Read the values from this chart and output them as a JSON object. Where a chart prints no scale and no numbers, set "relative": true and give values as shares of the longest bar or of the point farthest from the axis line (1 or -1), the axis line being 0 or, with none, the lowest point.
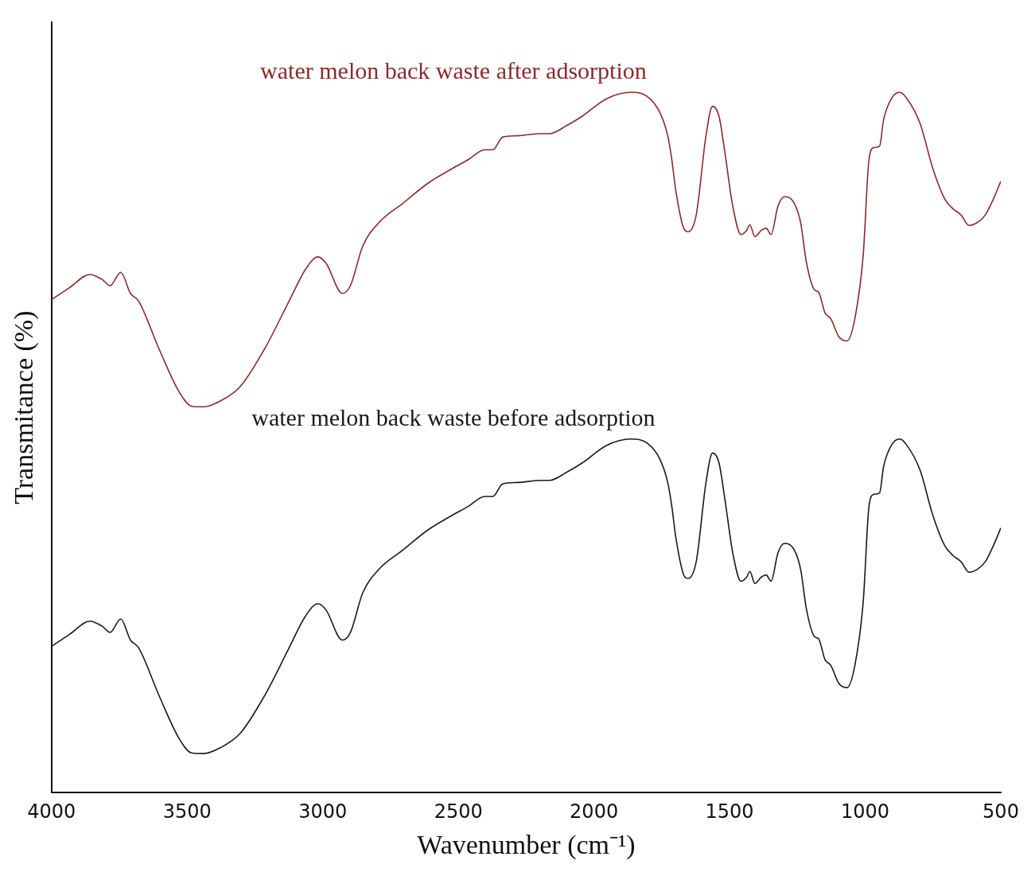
{
  "chart_data": {
    "type": "line",
    "xlabel": "Wavenumber (cm⁻¹)",
    "ylabel": "Transmitance (%)",
    "relative": true,
    "xlim": [
      4000,
      500
    ],
    "xticks": [
      4000,
      3500,
      3000,
      2500,
      2000,
      1500,
      1000,
      500
    ],
    "grid": false,
    "legend": false,
    "marker": "none",
    "line_style": "solid",
    "x": [
      4000,
      3934,
      3859,
      3814,
      3784,
      3745,
      3709,
      3679,
      3604,
      3529,
      3484,
      3439,
      3379,
      3304,
      3214,
      3124,
      3064,
      3018,
      2988,
      2928,
      2898,
      2853,
      2793,
      2703,
      2613,
      2523,
      2463,
      2403,
      2373,
      2337,
      2283,
      2193,
      2163,
      2103,
      2043,
      1953,
      1863,
      1803,
      1758,
      1728,
      1713,
      1698,
      1668,
      1653,
      1623,
      1587,
      1563,
      1539,
      1518,
      1488,
      1458,
      1437,
      1425,
      1407,
      1383,
      1365,
      1347,
      1322,
      1298,
      1262,
      1238,
      1217,
      1187,
      1172,
      1148,
      1127,
      1097,
      1067,
      1037,
      1007,
      986,
      968,
      947,
      932,
      902,
      872,
      848,
      797,
      752,
      707,
      677,
      647,
      617,
      587,
      557,
      527,
      500
    ],
    "series": [
      {
        "name": "water melon back waste after adsorption",
        "color": "#8b2a2a",
        "values": [
          0.704,
          0.721,
          0.74,
          0.733,
          0.724,
          0.743,
          0.713,
          0.702,
          0.634,
          0.572,
          0.552,
          0.551,
          0.559,
          0.58,
          0.634,
          0.702,
          0.747,
          0.765,
          0.756,
          0.713,
          0.724,
          0.78,
          0.814,
          0.842,
          0.87,
          0.891,
          0.904,
          0.918,
          0.918,
          0.936,
          0.938,
          0.941,
          0.941,
          0.952,
          0.966,
          0.991,
          1,
          0.994,
          0.972,
          0.938,
          0.904,
          0.859,
          0.805,
          0.801,
          0.825,
          0.938,
          0.98,
          0.966,
          0.916,
          0.837,
          0.797,
          0.803,
          0.811,
          0.794,
          0.803,
          0.806,
          0.797,
          0.837,
          0.851,
          0.842,
          0.814,
          0.758,
          0.718,
          0.715,
          0.685,
          0.677,
          0.651,
          0.645,
          0.679,
          0.769,
          0.904,
          0.921,
          0.923,
          0.961,
          0.992,
          1,
          0.992,
          0.955,
          0.893,
          0.848,
          0.834,
          0.825,
          0.81,
          0.814,
          0.825,
          0.848,
          0.873
        ]
      },
      {
        "name": "water melon back waste before adsorption",
        "color": "#1a1a1a",
        "values": [
          0.209,
          0.226,
          0.245,
          0.238,
          0.229,
          0.248,
          0.218,
          0.207,
          0.139,
          0.077,
          0.057,
          0.056,
          0.064,
          0.085,
          0.139,
          0.207,
          0.252,
          0.27,
          0.261,
          0.218,
          0.229,
          0.285,
          0.319,
          0.347,
          0.375,
          0.396,
          0.409,
          0.423,
          0.423,
          0.441,
          0.443,
          0.446,
          0.446,
          0.457,
          0.471,
          0.496,
          0.505,
          0.499,
          0.477,
          0.443,
          0.409,
          0.364,
          0.31,
          0.306,
          0.33,
          0.443,
          0.485,
          0.471,
          0.421,
          0.342,
          0.302,
          0.308,
          0.316,
          0.299,
          0.308,
          0.311,
          0.302,
          0.342,
          0.356,
          0.347,
          0.319,
          0.263,
          0.223,
          0.22,
          0.19,
          0.182,
          0.156,
          0.15,
          0.184,
          0.274,
          0.409,
          0.426,
          0.428,
          0.466,
          0.497,
          0.505,
          0.497,
          0.46,
          0.398,
          0.353,
          0.339,
          0.33,
          0.315,
          0.319,
          0.33,
          0.353,
          0.378
        ]
      }
    ]
  }
}
